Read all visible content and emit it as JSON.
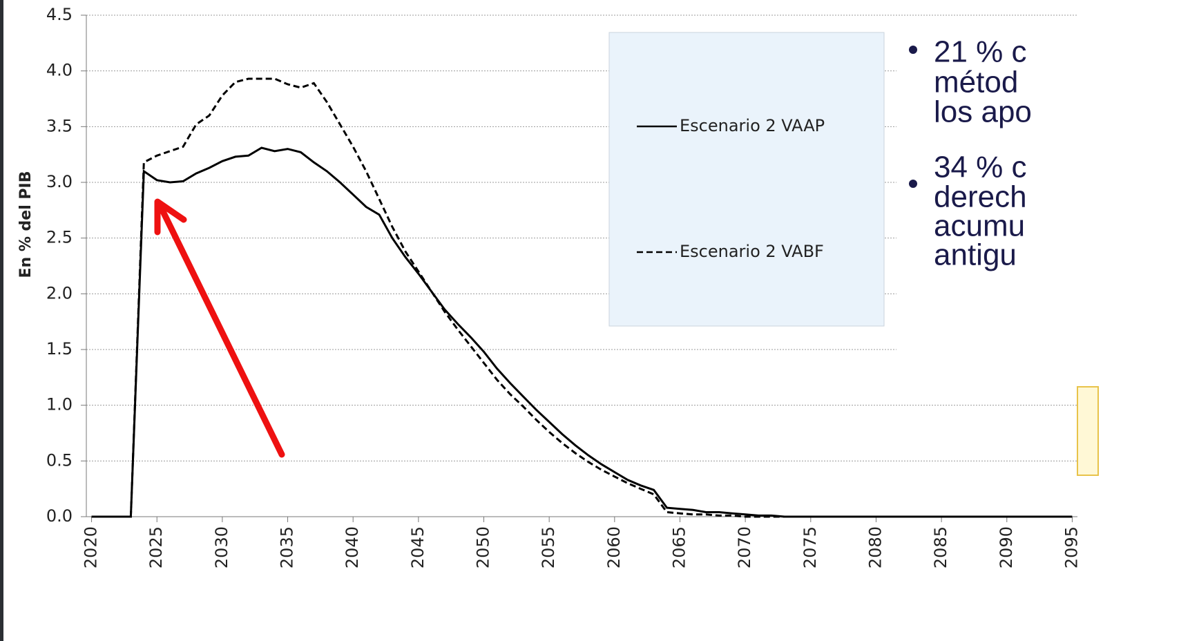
{
  "chart_data": {
    "type": "line",
    "y_label": "En % del PIB",
    "x": [
      2020,
      2021,
      2022,
      2023,
      2024,
      2025,
      2026,
      2027,
      2028,
      2029,
      2030,
      2031,
      2032,
      2033,
      2034,
      2035,
      2036,
      2037,
      2038,
      2039,
      2040,
      2041,
      2042,
      2043,
      2044,
      2045,
      2046,
      2047,
      2048,
      2049,
      2050,
      2051,
      2052,
      2053,
      2054,
      2055,
      2056,
      2057,
      2058,
      2059,
      2060,
      2061,
      2062,
      2063,
      2064,
      2065,
      2066,
      2067,
      2068,
      2069,
      2070,
      2071,
      2072,
      2073,
      2074,
      2075,
      2076,
      2077,
      2078,
      2079,
      2080,
      2081,
      2082,
      2083,
      2084,
      2085,
      2086,
      2087,
      2088,
      2089,
      2090,
      2091,
      2092,
      2093,
      2094,
      2095
    ],
    "series": [
      {
        "name": "Escenario 2 VAAP",
        "color": "#000000",
        "dash": "solid",
        "values": [
          0,
          0,
          0,
          0,
          3.1,
          3.02,
          3.0,
          3.01,
          3.08,
          3.13,
          3.19,
          3.23,
          3.24,
          3.31,
          3.28,
          3.3,
          3.27,
          3.18,
          3.1,
          3.0,
          2.89,
          2.78,
          2.71,
          2.5,
          2.33,
          2.18,
          2.02,
          1.86,
          1.73,
          1.61,
          1.48,
          1.33,
          1.2,
          1.08,
          0.96,
          0.85,
          0.74,
          0.64,
          0.55,
          0.47,
          0.4,
          0.33,
          0.28,
          0.24,
          0.08,
          0.07,
          0.06,
          0.04,
          0.04,
          0.03,
          0.02,
          0.01,
          0.01,
          0,
          0,
          0,
          0,
          0,
          0,
          0,
          0,
          0,
          0,
          0,
          0,
          0,
          0,
          0,
          0,
          0,
          0,
          0,
          0,
          0,
          0,
          0
        ]
      },
      {
        "name": "Escenario 2 VABF",
        "color": "#000000",
        "dash": "dashed",
        "values": [
          0,
          0,
          0,
          0,
          3.18,
          3.24,
          3.28,
          3.32,
          3.52,
          3.6,
          3.78,
          3.9,
          3.93,
          3.93,
          3.93,
          3.88,
          3.85,
          3.89,
          3.72,
          3.52,
          3.32,
          3.1,
          2.85,
          2.6,
          2.38,
          2.2,
          2.02,
          1.84,
          1.68,
          1.53,
          1.38,
          1.23,
          1.1,
          0.99,
          0.87,
          0.76,
          0.66,
          0.57,
          0.49,
          0.42,
          0.36,
          0.3,
          0.25,
          0.2,
          0.04,
          0.03,
          0.02,
          0.02,
          0.01,
          0.01,
          0,
          0,
          0,
          0,
          0,
          0,
          0,
          0,
          0,
          0,
          0,
          0,
          0,
          0,
          0,
          0,
          0,
          0,
          0,
          0,
          0,
          0,
          0,
          0,
          0,
          0
        ]
      }
    ],
    "xlim": [
      2019.6,
      2095.4
    ],
    "xticks": [
      2020,
      2025,
      2030,
      2035,
      2040,
      2045,
      2050,
      2055,
      2060,
      2065,
      2070,
      2075,
      2080,
      2085,
      2090,
      2095
    ],
    "ylim": [
      0,
      4.5
    ],
    "yticks": [
      {
        "value": 0,
        "label": "0.0"
      },
      0.5,
      {
        "value": 1,
        "label": "1.0"
      },
      1.5,
      {
        "value": 2,
        "label": "2.0"
      },
      2.5,
      {
        "value": 3,
        "label": "3.0"
      },
      3.5,
      {
        "value": 4,
        "label": "4.0"
      },
      4.5
    ],
    "grid": true,
    "side_text": [
      "21 % c",
      "métod",
      "los apo",
      "34 % c",
      "derech",
      "acumu",
      "antigu"
    ]
  }
}
